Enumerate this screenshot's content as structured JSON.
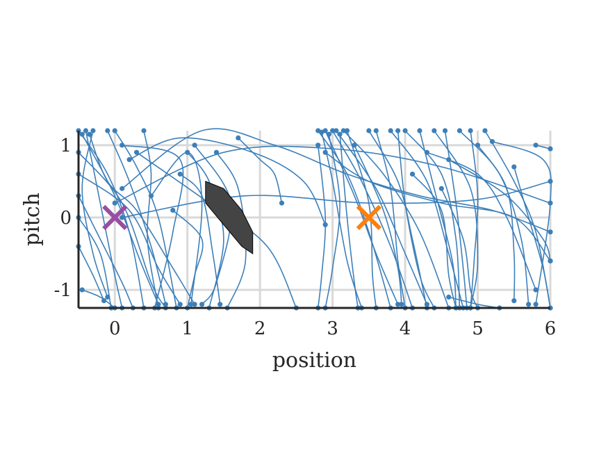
{
  "chart_data": {
    "type": "line",
    "title": "",
    "xlabel": "position",
    "ylabel": "pitch",
    "xlim": [
      -0.5,
      6
    ],
    "ylim": [
      -1.25,
      1.2
    ],
    "xticks": [
      0,
      1,
      2,
      3,
      4,
      5,
      6
    ],
    "xtick_labels": [
      "0",
      "1",
      "2",
      "3",
      "4",
      "5",
      "6"
    ],
    "yticks": [
      -1,
      0,
      1
    ],
    "ytick_labels": [
      "-1",
      "0",
      "1"
    ],
    "grid": true,
    "legend": "none",
    "colors": {
      "trajectories": "#3c7fb9",
      "obstacle_fill": "#444444",
      "start_marker": "#984ea3",
      "goal_marker": "#ff7f0e"
    },
    "markers": [
      {
        "name": "start",
        "symbol": "x",
        "x": 0,
        "y": 0,
        "color": "#984ea3"
      },
      {
        "name": "goal",
        "symbol": "x",
        "x": 3.5,
        "y": 0,
        "color": "#ff7f0e"
      }
    ],
    "obstacle": {
      "polygon": [
        [
          1.25,
          0.5
        ],
        [
          1.5,
          0.4
        ],
        [
          1.75,
          0.1
        ],
        [
          1.9,
          -0.2
        ],
        [
          1.9,
          -0.5
        ],
        [
          1.75,
          -0.4
        ],
        [
          1.5,
          -0.1
        ],
        [
          1.25,
          0.2
        ]
      ]
    },
    "series": [
      {
        "points": [
          [
            -0.5,
            1.2
          ],
          [
            -0.1,
            0.6
          ],
          [
            0.2,
            -0.2
          ],
          [
            0.4,
            -1.25
          ]
        ]
      },
      {
        "points": [
          [
            -0.45,
            1.15
          ],
          [
            0.0,
            0.3
          ],
          [
            0.35,
            -0.6
          ],
          [
            0.6,
            -1.2
          ]
        ]
      },
      {
        "points": [
          [
            -0.4,
            1.2
          ],
          [
            -0.2,
            0.2
          ],
          [
            0.0,
            -0.8
          ],
          [
            0.1,
            -1.25
          ]
        ]
      },
      {
        "points": [
          [
            -0.35,
            1.15
          ],
          [
            -0.1,
            0.5
          ],
          [
            0.3,
            0.1
          ],
          [
            0.8,
            -0.7
          ],
          [
            1.1,
            -1.2
          ]
        ]
      },
      {
        "points": [
          [
            -0.3,
            1.2
          ],
          [
            -0.45,
            0.4
          ],
          [
            -0.3,
            -0.5
          ],
          [
            -0.1,
            -1.1
          ]
        ]
      },
      {
        "points": [
          [
            -0.5,
            0.9
          ],
          [
            0.1,
            0.2
          ],
          [
            0.5,
            -0.9
          ],
          [
            0.7,
            -1.25
          ]
        ]
      },
      {
        "points": [
          [
            -0.5,
            0.6
          ],
          [
            0.2,
            0.1
          ],
          [
            0.6,
            -0.7
          ],
          [
            0.9,
            -1.2
          ]
        ]
      },
      {
        "points": [
          [
            -0.5,
            0.3
          ],
          [
            -0.2,
            -0.3
          ],
          [
            0.1,
            -0.9
          ],
          [
            0.25,
            -1.25
          ]
        ]
      },
      {
        "points": [
          [
            -0.5,
            0.0
          ],
          [
            -0.2,
            -0.5
          ],
          [
            -0.05,
            -1.25
          ]
        ]
      },
      {
        "points": [
          [
            -0.5,
            -0.4
          ],
          [
            -0.3,
            -0.8
          ],
          [
            -0.15,
            -1.15
          ]
        ]
      },
      {
        "points": [
          [
            -0.45,
            -1.0
          ],
          [
            -0.2,
            -1.1
          ],
          [
            0.0,
            -1.25
          ]
        ]
      },
      {
        "points": [
          [
            -0.1,
            1.2
          ],
          [
            0.2,
            0.5
          ],
          [
            0.5,
            -0.4
          ],
          [
            0.7,
            -1.2
          ]
        ]
      },
      {
        "points": [
          [
            0.0,
            1.2
          ],
          [
            0.3,
            0.7
          ],
          [
            0.6,
            0.0
          ],
          [
            0.85,
            -1.25
          ]
        ]
      },
      {
        "points": [
          [
            0.4,
            1.2
          ],
          [
            0.5,
            0.6
          ],
          [
            0.45,
            -0.3
          ],
          [
            0.6,
            -1.25
          ]
        ]
      },
      {
        "points": [
          [
            0.1,
            1.0
          ],
          [
            0.9,
            0.8
          ],
          [
            0.8,
            -0.2
          ],
          [
            0.55,
            -1.25
          ]
        ]
      },
      {
        "points": [
          [
            0.5,
            0.3
          ],
          [
            1.0,
            0.9
          ],
          [
            1.2,
            0.2
          ],
          [
            1.05,
            -1.2
          ]
        ]
      },
      {
        "points": [
          [
            0.2,
            0.8
          ],
          [
            0.9,
            1.1
          ],
          [
            1.9,
            0.9
          ],
          [
            2.6,
            0.5
          ],
          [
            2.9,
            -0.1
          ]
        ]
      },
      {
        "points": [
          [
            0.1,
            0.4
          ],
          [
            1.2,
            1.2
          ],
          [
            2.2,
            1.0
          ],
          [
            3.2,
            0.6
          ],
          [
            4.2,
            0.3
          ],
          [
            5.2,
            0.1
          ],
          [
            6.0,
            -0.2
          ]
        ]
      },
      {
        "points": [
          [
            0.0,
            0.2
          ],
          [
            1.5,
            0.9
          ],
          [
            3.0,
            0.95
          ],
          [
            4.5,
            0.7
          ],
          [
            6.0,
            0.2
          ]
        ]
      },
      {
        "points": [
          [
            0.1,
            0.0
          ],
          [
            1.8,
            0.3
          ],
          [
            3.5,
            0.2
          ],
          [
            5.0,
            0.25
          ],
          [
            6.0,
            0.5
          ]
        ]
      },
      {
        "points": [
          [
            0.3,
            0.9
          ],
          [
            1.3,
            0.2
          ],
          [
            2.1,
            -0.4
          ],
          [
            2.5,
            -1.25
          ]
        ]
      },
      {
        "points": [
          [
            0.9,
            0.6
          ],
          [
            1.2,
            0.3
          ],
          [
            1.35,
            -0.5
          ],
          [
            1.45,
            -1.2
          ]
        ]
      },
      {
        "points": [
          [
            1.0,
            0.9
          ],
          [
            1.3,
            0.5
          ],
          [
            1.5,
            -0.3
          ],
          [
            1.3,
            -1.25
          ]
        ]
      },
      {
        "points": [
          [
            1.1,
            1.0
          ],
          [
            1.6,
            0.2
          ],
          [
            1.4,
            -0.9
          ],
          [
            1.2,
            -1.2
          ]
        ]
      },
      {
        "points": [
          [
            1.4,
            0.9
          ],
          [
            1.7,
            0.4
          ],
          [
            1.8,
            -0.6
          ],
          [
            1.55,
            -1.25
          ]
        ]
      },
      {
        "points": [
          [
            1.7,
            1.1
          ],
          [
            2.0,
            0.8
          ],
          [
            2.2,
            0.6
          ],
          [
            2.3,
            0.2
          ]
        ]
      },
      {
        "points": [
          [
            0.8,
            0.1
          ],
          [
            1.2,
            -0.3
          ],
          [
            1.1,
            -0.8
          ],
          [
            1.0,
            -1.25
          ]
        ]
      },
      {
        "points": [
          [
            2.8,
            1.2
          ],
          [
            3.2,
            0.6
          ],
          [
            3.5,
            -0.2
          ],
          [
            3.8,
            -1.25
          ]
        ]
      },
      {
        "points": [
          [
            2.85,
            1.18
          ],
          [
            3.0,
            0.5
          ],
          [
            3.2,
            -0.6
          ],
          [
            3.4,
            -1.25
          ]
        ]
      },
      {
        "points": [
          [
            2.9,
            1.2
          ],
          [
            3.3,
            0.3
          ],
          [
            3.6,
            -0.5
          ],
          [
            3.9,
            -1.2
          ]
        ]
      },
      {
        "points": [
          [
            2.95,
            1.15
          ],
          [
            3.1,
            0.2
          ],
          [
            3.0,
            -0.7
          ],
          [
            2.9,
            -1.25
          ]
        ]
      },
      {
        "points": [
          [
            3.0,
            1.2
          ],
          [
            3.4,
            0.5
          ],
          [
            3.8,
            -0.4
          ],
          [
            4.1,
            -1.25
          ]
        ]
      },
      {
        "points": [
          [
            3.05,
            1.2
          ],
          [
            3.6,
            0.4
          ],
          [
            4.0,
            -0.5
          ],
          [
            4.3,
            -1.2
          ]
        ]
      },
      {
        "points": [
          [
            3.1,
            1.15
          ],
          [
            3.2,
            0.0
          ],
          [
            3.3,
            -0.9
          ],
          [
            3.35,
            -1.25
          ]
        ]
      },
      {
        "points": [
          [
            3.15,
            1.2
          ],
          [
            3.7,
            0.6
          ],
          [
            4.2,
            -0.2
          ],
          [
            4.6,
            -1.25
          ]
        ]
      },
      {
        "points": [
          [
            3.2,
            1.2
          ],
          [
            3.5,
            0.2
          ],
          [
            3.55,
            -0.8
          ],
          [
            3.6,
            -1.25
          ]
        ]
      },
      {
        "points": [
          [
            2.8,
            1.0
          ],
          [
            2.9,
            0.0
          ],
          [
            2.85,
            -0.8
          ],
          [
            2.8,
            -1.25
          ]
        ]
      },
      {
        "points": [
          [
            2.9,
            0.9
          ],
          [
            3.5,
            0.5
          ],
          [
            4.5,
            0.2
          ],
          [
            5.5,
            0.0
          ],
          [
            6.0,
            -0.6
          ]
        ]
      },
      {
        "points": [
          [
            3.5,
            1.2
          ],
          [
            3.9,
            0.5
          ],
          [
            4.1,
            -0.3
          ],
          [
            4.3,
            -1.25
          ]
        ]
      },
      {
        "points": [
          [
            3.6,
            1.2
          ],
          [
            3.8,
            0.4
          ],
          [
            3.9,
            -0.6
          ],
          [
            4.0,
            -1.25
          ]
        ]
      },
      {
        "points": [
          [
            3.8,
            1.2
          ],
          [
            4.3,
            0.5
          ],
          [
            4.6,
            -0.5
          ],
          [
            4.8,
            -1.25
          ]
        ]
      },
      {
        "points": [
          [
            3.9,
            1.2
          ],
          [
            4.0,
            0.2
          ],
          [
            4.2,
            -0.8
          ],
          [
            4.4,
            -1.25
          ]
        ]
      },
      {
        "points": [
          [
            4.0,
            1.2
          ],
          [
            4.5,
            0.6
          ],
          [
            4.7,
            -0.3
          ],
          [
            4.75,
            -1.25
          ]
        ]
      },
      {
        "points": [
          [
            4.2,
            1.2
          ],
          [
            4.4,
            0.4
          ],
          [
            4.65,
            -0.6
          ],
          [
            4.7,
            -1.25
          ]
        ]
      },
      {
        "points": [
          [
            4.4,
            1.2
          ],
          [
            4.9,
            0.4
          ],
          [
            5.0,
            -0.6
          ],
          [
            4.9,
            -1.25
          ]
        ]
      },
      {
        "points": [
          [
            4.55,
            1.2
          ],
          [
            4.7,
            0.2
          ],
          [
            4.8,
            -0.7
          ],
          [
            4.85,
            -1.25
          ]
        ]
      },
      {
        "points": [
          [
            4.75,
            1.2
          ],
          [
            5.3,
            0.6
          ],
          [
            5.6,
            -0.3
          ],
          [
            5.7,
            -1.2
          ]
        ]
      },
      {
        "points": [
          [
            4.9,
            1.2
          ],
          [
            5.0,
            0.3
          ],
          [
            4.95,
            -0.6
          ],
          [
            4.9,
            -1.25
          ]
        ]
      },
      {
        "points": [
          [
            5.1,
            1.2
          ],
          [
            5.5,
            0.5
          ],
          [
            5.8,
            -0.2
          ],
          [
            6.0,
            -1.25
          ]
        ]
      },
      {
        "points": [
          [
            5.0,
            1.0
          ],
          [
            5.4,
            0.4
          ],
          [
            5.5,
            -0.5
          ],
          [
            5.5,
            -1.15
          ]
        ]
      },
      {
        "points": [
          [
            5.2,
            1.05
          ],
          [
            5.9,
            0.8
          ],
          [
            6.0,
            0.2
          ],
          [
            5.8,
            -1.2
          ]
        ]
      },
      {
        "points": [
          [
            5.5,
            0.7
          ],
          [
            5.7,
            0.0
          ],
          [
            5.9,
            -0.7
          ],
          [
            6.0,
            -1.25
          ]
        ]
      },
      {
        "points": [
          [
            4.1,
            0.6
          ],
          [
            4.5,
            0.1
          ],
          [
            4.6,
            -0.8
          ],
          [
            4.7,
            -1.25
          ]
        ]
      },
      {
        "points": [
          [
            4.3,
            0.9
          ],
          [
            5.0,
            0.6
          ],
          [
            5.4,
            0.0
          ],
          [
            5.8,
            -1.0
          ]
        ]
      },
      {
        "points": [
          [
            5.8,
            1.0
          ],
          [
            6.0,
            0.95
          ]
        ]
      },
      {
        "points": [
          [
            4.5,
            0.4
          ],
          [
            4.8,
            -0.3
          ],
          [
            4.9,
            -1.0
          ],
          [
            5.0,
            -1.25
          ]
        ]
      },
      {
        "points": [
          [
            3.3,
            1.0
          ],
          [
            3.7,
            0.1
          ],
          [
            3.9,
            -0.7
          ],
          [
            3.95,
            -1.2
          ]
        ]
      },
      {
        "points": [
          [
            4.6,
            -1.1
          ],
          [
            5.0,
            -1.2
          ],
          [
            5.3,
            -1.25
          ]
        ]
      },
      {
        "points": [
          [
            4.6,
            0.8
          ],
          [
            5.4,
            0.3
          ],
          [
            5.9,
            -0.3
          ],
          [
            6.0,
            -0.6
          ]
        ]
      }
    ]
  }
}
